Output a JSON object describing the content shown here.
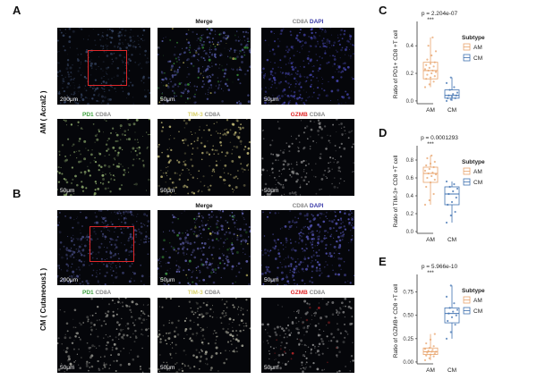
{
  "panel_letters": {
    "A": "A",
    "B": "B",
    "C": "C",
    "D": "D",
    "E": "E"
  },
  "row_labels": {
    "am": "AM ( Acral2 )",
    "cm": "CM ( Cutaneous1 )"
  },
  "titles": {
    "merge": "Merge",
    "cd8a_dapi": {
      "a": "CD8A",
      "b": "DAPI"
    },
    "pd1_cd8a": {
      "a": "PD1",
      "b": "CD8A"
    },
    "tim3_cd8a": {
      "a": "TIM-3",
      "b": "CD8A"
    },
    "gzmb_cd8a": {
      "a": "GZMB",
      "b": "CD8A"
    }
  },
  "scales": {
    "large": "200μm",
    "small": "50μm"
  },
  "colors": {
    "am": "#E8A36B",
    "cm": "#3E70B0",
    "pd1": "#3fa13f",
    "tim3": "#d8d06a",
    "gzmb": "#e0282a",
    "cd8a": "#777777",
    "dapi": "#3a3aa8"
  },
  "legend": {
    "title": "Subtype",
    "am": "AM",
    "cm": "CM"
  },
  "chart_data": [
    {
      "type": "box",
      "panel": "C",
      "pvalue": "p = 2.204e-07",
      "sig": "***",
      "ylabel": "Ratio of PD1+ CD8 +T cell",
      "categories": [
        "AM",
        "CM"
      ],
      "yticks": [
        "0.0",
        "0.2",
        "0.4"
      ],
      "ylim": [
        -0.02,
        0.55
      ],
      "series": [
        {
          "name": "AM",
          "min": 0.1,
          "q1": 0.16,
          "median": 0.22,
          "q3": 0.28,
          "max": 0.46,
          "points": [
            0.1,
            0.12,
            0.14,
            0.16,
            0.17,
            0.18,
            0.19,
            0.2,
            0.21,
            0.22,
            0.22,
            0.23,
            0.24,
            0.25,
            0.26,
            0.27,
            0.28,
            0.3,
            0.33,
            0.36,
            0.4,
            0.46
          ]
        },
        {
          "name": "CM",
          "min": 0.0,
          "q1": 0.02,
          "median": 0.04,
          "q3": 0.08,
          "max": 0.17,
          "points": [
            0.0,
            0.01,
            0.02,
            0.02,
            0.03,
            0.04,
            0.04,
            0.05,
            0.06,
            0.08,
            0.1,
            0.13,
            0.17
          ]
        }
      ]
    },
    {
      "type": "box",
      "panel": "D",
      "pvalue": "p = 0.0001293",
      "sig": "***",
      "ylabel": "Ratio of TIM-3+ CD8 +T cell",
      "categories": [
        "AM",
        "CM"
      ],
      "yticks": [
        "0.0",
        "0.2",
        "0.4",
        "0.6",
        "0.8"
      ],
      "ylim": [
        -0.02,
        0.92
      ],
      "series": [
        {
          "name": "AM",
          "min": 0.3,
          "q1": 0.55,
          "median": 0.65,
          "q3": 0.72,
          "max": 0.85,
          "points": [
            0.3,
            0.35,
            0.42,
            0.5,
            0.55,
            0.58,
            0.6,
            0.62,
            0.64,
            0.65,
            0.66,
            0.68,
            0.7,
            0.72,
            0.74,
            0.76,
            0.78,
            0.82,
            0.85
          ]
        },
        {
          "name": "CM",
          "min": 0.1,
          "q1": 0.3,
          "median": 0.42,
          "q3": 0.5,
          "max": 0.56,
          "points": [
            0.1,
            0.18,
            0.22,
            0.3,
            0.33,
            0.38,
            0.42,
            0.45,
            0.48,
            0.5,
            0.53,
            0.56
          ]
        }
      ]
    },
    {
      "type": "box",
      "panel": "E",
      "pvalue": "p = 5.966e-10",
      "sig": "***",
      "ylabel": "Ratio of GZMB+ CD8 +T cell",
      "categories": [
        "AM",
        "CM"
      ],
      "yticks": [
        "0.00",
        "0.25",
        "0.50",
        "0.75"
      ],
      "ylim": [
        -0.02,
        0.9
      ],
      "series": [
        {
          "name": "AM",
          "min": 0.02,
          "q1": 0.08,
          "median": 0.11,
          "q3": 0.15,
          "max": 0.3,
          "points": [
            0.02,
            0.04,
            0.06,
            0.07,
            0.08,
            0.09,
            0.1,
            0.11,
            0.11,
            0.12,
            0.13,
            0.14,
            0.15,
            0.17,
            0.2,
            0.24,
            0.3
          ]
        },
        {
          "name": "CM",
          "min": 0.25,
          "q1": 0.42,
          "median": 0.52,
          "q3": 0.58,
          "max": 0.82,
          "points": [
            0.25,
            0.32,
            0.4,
            0.44,
            0.48,
            0.5,
            0.52,
            0.54,
            0.56,
            0.58,
            0.63,
            0.7,
            0.82
          ]
        }
      ]
    }
  ]
}
